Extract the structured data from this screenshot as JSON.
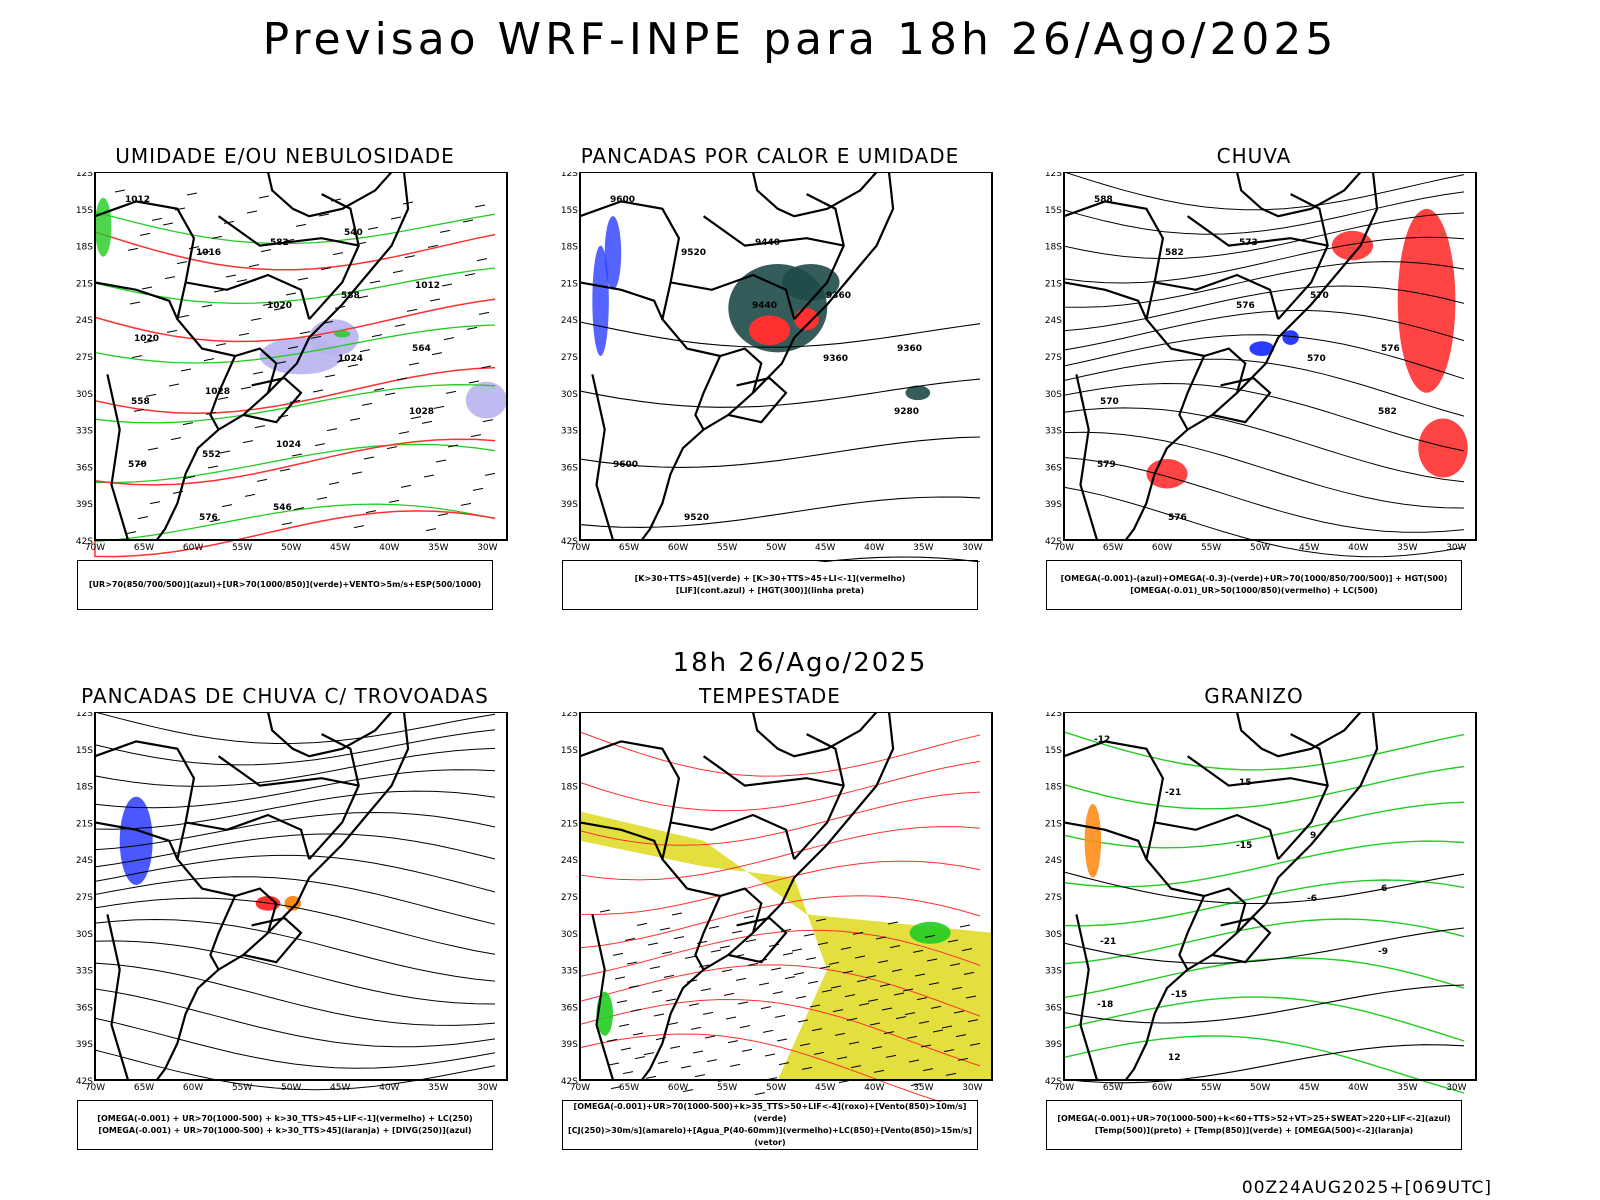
{
  "main_title": "Previsao WRF-INPE  para 18h 26/Ago/2025",
  "middle_title": "18h 26/Ago/2025",
  "footer": "00Z24AUG2025+[069UTC]",
  "lat_labels": [
    "12S",
    "15S",
    "18S",
    "21S",
    "24S",
    "27S",
    "30S",
    "33S",
    "36S",
    "39S",
    "42S"
  ],
  "lon_labels": [
    "70W",
    "65W",
    "60W",
    "55W",
    "50W",
    "45W",
    "40W",
    "35W",
    "30W"
  ],
  "colors": {
    "red": "#ff3030",
    "green": "#22cc22",
    "blue": "#2a3cff",
    "orange": "#ff8c1a",
    "yellow": "#e0dc2a",
    "teal": "#1e4a48",
    "lavender": "#b8b4ee"
  },
  "panels": [
    {
      "title": "UMIDADE E/OU NEBULOSIDADE",
      "legend": [
        "[UR>70(850/700/500)](azul)+[UR>70(1000/850)](verde)+VENTO>5m/s+ESP(500/1000)"
      ],
      "labels": [
        "1012",
        "1016",
        "1020",
        "1024",
        "1028",
        "570",
        "576",
        "582",
        "588",
        "564",
        "558",
        "552",
        "546",
        "540",
        "1012",
        "1020",
        "1028",
        "1024"
      ]
    },
    {
      "title": "PANCADAS POR CALOR E UMIDADE",
      "legend": [
        "[K>30+TTS>45](verde) + [K>30+TTS>45+LI<-1](vermelho)",
        "[LIF](cont.azul) + [HGT(300)](linha preta)"
      ],
      "labels": [
        "9600",
        "9520",
        "9440",
        "9360",
        "9280",
        "9600",
        "9520",
        "9440",
        "9360",
        "9360"
      ]
    },
    {
      "title": "CHUVA",
      "legend": [
        "[OMEGA(-0.001)-(azul)+OMEGA(-0.3)-(verde)+UR>70(1000/850/700/500)] + HGT(500)",
        "[OMEGA(-0.01)_UR>50(1000/850)(vermelho) + LC(500)"
      ],
      "labels": [
        "588",
        "582",
        "576",
        "570",
        "582",
        "579",
        "576",
        "573",
        "570",
        "576",
        "570"
      ]
    },
    {
      "title": "PANCADAS DE CHUVA C/ TROVOADAS",
      "legend": [
        "[OMEGA(-0.001) + UR>70(1000-500) + k>30_TTS>45+LIF<-1](vermelho) + LC(250)",
        "[OMEGA(-0.001) + UR>70(1000-500) + k>30_TTS>45](laranja) + [DIVG(250)](azul)"
      ],
      "labels": []
    },
    {
      "title": "TEMPESTADE",
      "legend": [
        "[OMEGA(-0.001)+UR>70(1000-500)+k>35_TTS>50+LIF<-4](roxo)+[Vento(850)>10m/s](verde)",
        "[CJ(250)>30m/s](amarelo)+[Agua_P(40-60mm)](vermelho)+LC(850)+[Vento(850)>15m/s](vetor)"
      ],
      "labels": []
    },
    {
      "title": "GRANIZO",
      "legend": [
        "[OMEGA(-0.001)+UR>70(1000-500)+k<60+TTS>52+VT>25+SWEAT>220+LIF<-2](azul)",
        "[Temp(500)](preto) + [Temp(850)](verde) + [OMEGA(500)<-2](laranja)"
      ],
      "labels": [
        "-12",
        "-21",
        "-15",
        "-6",
        "-9",
        "-18",
        "12",
        "15",
        "9",
        "6",
        "-21",
        "-15"
      ]
    }
  ]
}
